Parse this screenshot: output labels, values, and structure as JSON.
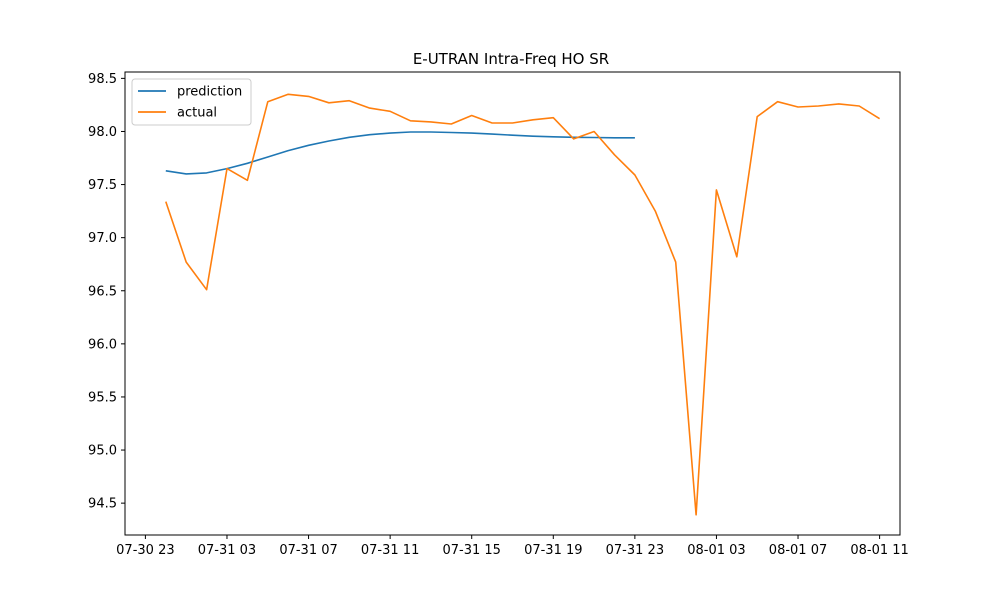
{
  "chart_data": {
    "type": "line",
    "title": "E-UTRAN Intra-Freq HO SR",
    "xlabel": "",
    "ylabel": "",
    "x_start": "2023-07-30T23:00",
    "x_step_hours": 1,
    "xlim": [
      "07-30 22",
      "08-01 12"
    ],
    "ylim": [
      94.2,
      98.56
    ],
    "x_ticks": [
      "07-30 23",
      "07-31 03",
      "07-31 07",
      "07-31 11",
      "07-31 15",
      "07-31 19",
      "07-31 23",
      "08-01 03",
      "08-01 07",
      "08-01 11"
    ],
    "y_ticks": [
      "94.5",
      "95.0",
      "95.5",
      "96.0",
      "96.5",
      "97.0",
      "97.5",
      "98.0",
      "98.5"
    ],
    "grid": false,
    "legend_position": "top-left",
    "series": [
      {
        "name": "prediction",
        "color": "#1f77b4",
        "x": [
          "07-31 00",
          "07-31 01",
          "07-31 02",
          "07-31 03",
          "07-31 04",
          "07-31 05",
          "07-31 06",
          "07-31 07",
          "07-31 08",
          "07-31 09",
          "07-31 10",
          "07-31 11",
          "07-31 12",
          "07-31 13",
          "07-31 14",
          "07-31 15",
          "07-31 16",
          "07-31 17",
          "07-31 18",
          "07-31 19",
          "07-31 20",
          "07-31 21",
          "07-31 22",
          "07-31 23"
        ],
        "values": [
          97.63,
          97.6,
          97.61,
          97.65,
          97.7,
          97.76,
          97.82,
          97.87,
          97.91,
          97.945,
          97.97,
          97.985,
          97.995,
          97.995,
          97.99,
          97.985,
          97.975,
          97.965,
          97.955,
          97.95,
          97.945,
          97.943,
          97.94,
          97.94
        ]
      },
      {
        "name": "actual",
        "color": "#ff7f0e",
        "x": [
          "07-31 00",
          "07-31 01",
          "07-31 02",
          "07-31 03",
          "07-31 04",
          "07-31 05",
          "07-31 06",
          "07-31 07",
          "07-31 08",
          "07-31 09",
          "07-31 10",
          "07-31 11",
          "07-31 12",
          "07-31 13",
          "07-31 14",
          "07-31 15",
          "07-31 16",
          "07-31 17",
          "07-31 18",
          "07-31 19",
          "07-31 20",
          "07-31 21",
          "07-31 22",
          "07-31 23",
          "08-01 00",
          "08-01 01",
          "08-01 02",
          "08-01 03",
          "08-01 04",
          "08-01 05",
          "08-01 06",
          "08-01 07",
          "08-01 08",
          "08-01 09",
          "08-01 10",
          "08-01 11"
        ],
        "values": [
          97.34,
          96.77,
          96.51,
          97.65,
          97.54,
          98.28,
          98.35,
          98.33,
          98.27,
          98.29,
          98.22,
          98.19,
          98.1,
          98.09,
          98.07,
          98.15,
          98.08,
          98.08,
          98.11,
          98.13,
          97.93,
          98.0,
          97.78,
          97.59,
          97.25,
          96.77,
          94.39,
          97.45,
          96.82,
          98.14,
          98.28,
          98.23,
          98.24,
          98.26,
          98.24,
          98.12
        ]
      }
    ]
  }
}
